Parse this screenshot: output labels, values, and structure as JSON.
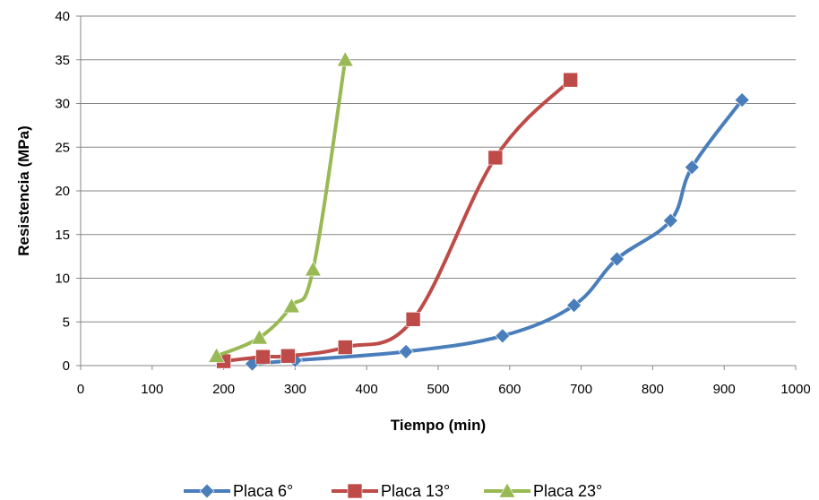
{
  "chart_data": {
    "type": "line",
    "title": "",
    "xlabel": "Tiempo (min)",
    "ylabel": "Resistencia (MPa)",
    "xlim": [
      0,
      1000
    ],
    "ylim": [
      0,
      40
    ],
    "x_ticks": [
      "0",
      "100",
      "200",
      "300",
      "400",
      "500",
      "600",
      "700",
      "800",
      "900",
      "1000"
    ],
    "y_ticks": [
      "0",
      "5",
      "10",
      "15",
      "20",
      "25",
      "30",
      "35",
      "40"
    ],
    "grid": "horizontal",
    "legend_position": "bottom",
    "series": [
      {
        "name": "Placa 6°",
        "color": "#4a7ebb",
        "marker": "diamond",
        "points": [
          [
            240,
            0.2
          ],
          [
            300,
            0.6
          ],
          [
            455,
            1.6
          ],
          [
            590,
            3.4
          ],
          [
            690,
            6.9
          ],
          [
            750,
            12.2
          ],
          [
            825,
            16.6
          ],
          [
            855,
            22.7
          ],
          [
            925,
            30.4
          ]
        ]
      },
      {
        "name": "Placa 13°",
        "color": "#be4b48",
        "marker": "square",
        "points": [
          [
            200,
            0.5
          ],
          [
            255,
            1.0
          ],
          [
            290,
            1.1
          ],
          [
            370,
            2.1
          ],
          [
            465,
            5.3
          ],
          [
            580,
            23.8
          ],
          [
            685,
            32.7
          ]
        ]
      },
      {
        "name": "Placa 23°",
        "color": "#98b954",
        "marker": "triangle",
        "points": [
          [
            190,
            1.1
          ],
          [
            250,
            3.2
          ],
          [
            295,
            6.8
          ],
          [
            325,
            11.0
          ],
          [
            370,
            35.0
          ]
        ]
      }
    ]
  }
}
